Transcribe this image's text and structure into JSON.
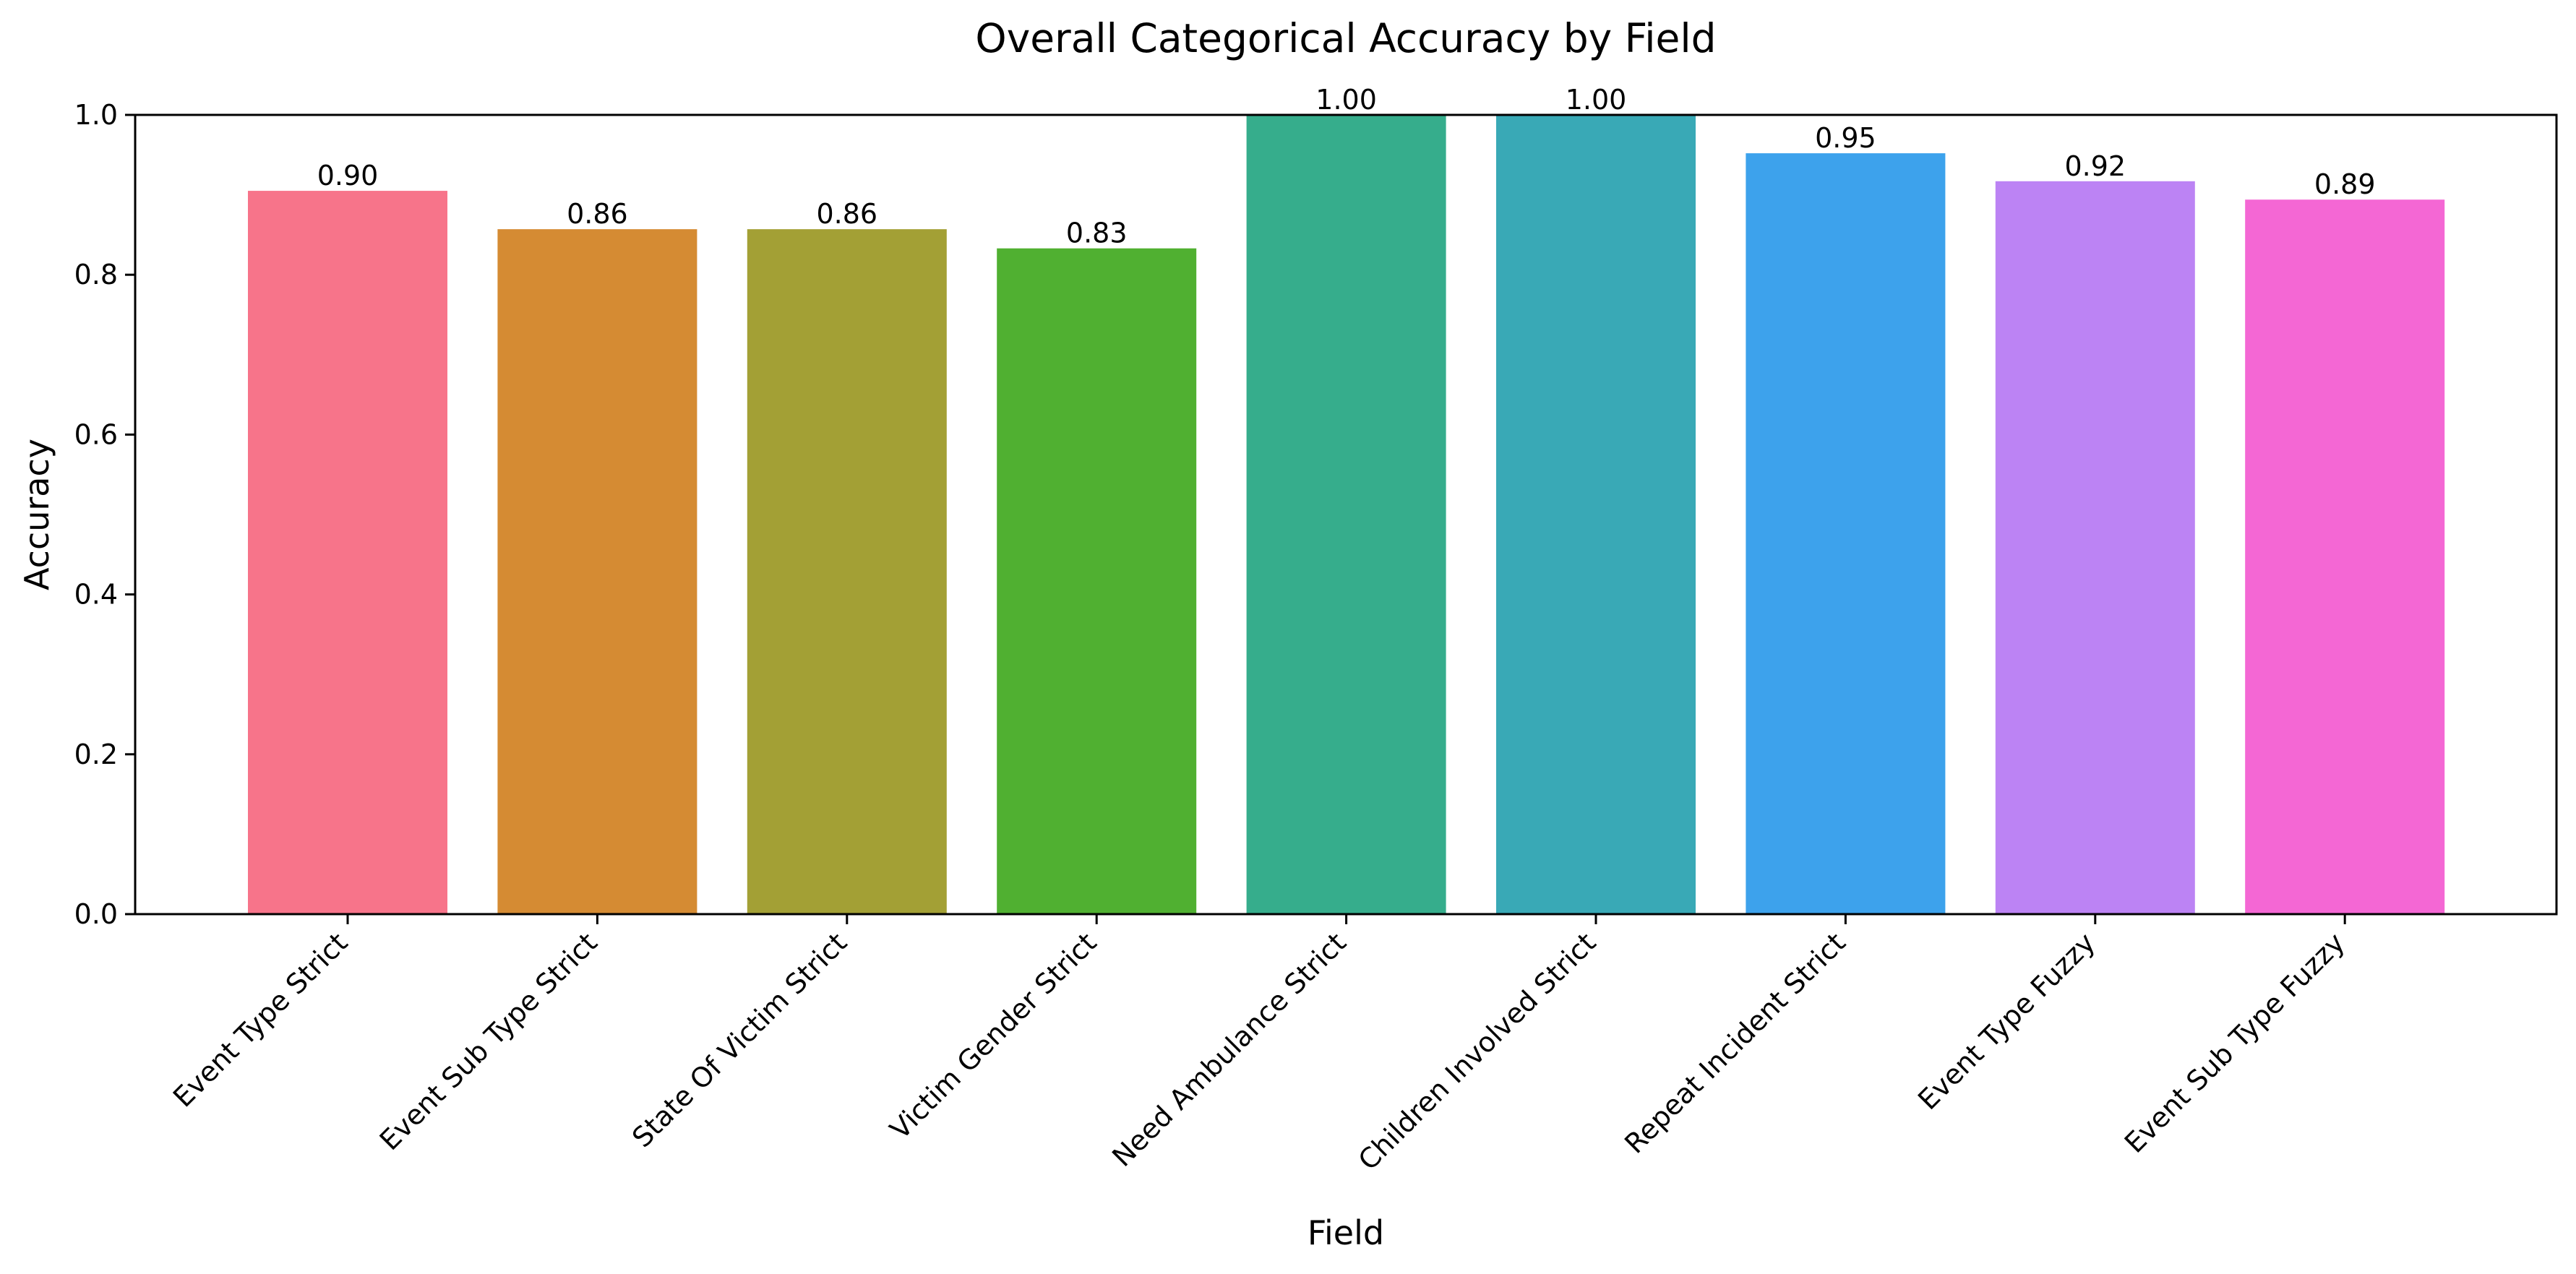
{
  "chart_data": {
    "type": "bar",
    "title": "Overall Categorical Accuracy by Field",
    "xlabel": "Field",
    "ylabel": "Accuracy",
    "ylim": [
      0,
      1.0
    ],
    "yticks": [
      "0.0",
      "0.2",
      "0.4",
      "0.6",
      "0.8",
      "1.0"
    ],
    "grid": false,
    "legend": "none",
    "categories": [
      "Event Type Strict",
      "Event Sub Type Strict",
      "State Of Victim Strict",
      "Victim Gender Strict",
      "Need Ambulance Strict",
      "Children Involved Strict",
      "Repeat Incident Strict",
      "Event Type Fuzzy",
      "Event Sub Type Fuzzy"
    ],
    "values": [
      0.905,
      0.857,
      0.857,
      0.833,
      1.0,
      1.0,
      0.952,
      0.917,
      0.894
    ],
    "data_labels": [
      "0.90",
      "0.86",
      "0.86",
      "0.83",
      "1.00",
      "1.00",
      "0.95",
      "0.92",
      "0.89"
    ],
    "colors": [
      "#f7748a",
      "#d58b33",
      "#a3a035",
      "#50b031",
      "#36ad8c",
      "#39a9b6",
      "#3da2ec",
      "#bc83f4",
      "#f467d4"
    ]
  }
}
